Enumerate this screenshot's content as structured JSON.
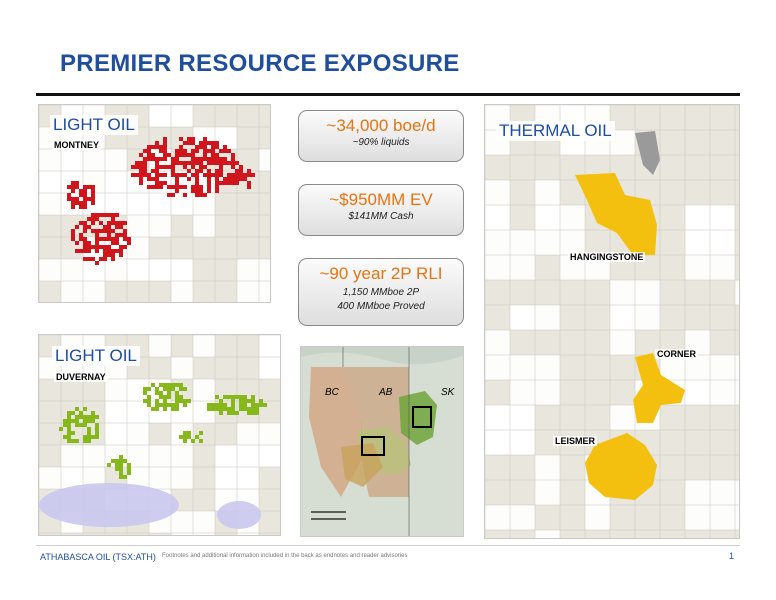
{
  "slide": {
    "title": "PREMIER RESOURCE EXPOSURE"
  },
  "maps": {
    "montney": {
      "title": "LIGHT OIL",
      "area": "MONTNEY"
    },
    "duvernay": {
      "title": "LIGHT OIL",
      "area": "DUVERNAY"
    },
    "thermal": {
      "title": "THERMAL OIL",
      "places": [
        "HANGINGSTONE",
        "CORNER",
        "LEISMER"
      ]
    },
    "regional": {
      "provinces": [
        "BC",
        "AB",
        "SK"
      ]
    }
  },
  "stats": [
    {
      "main": "~34,000 boe/d",
      "sub": [
        "~90% liquids"
      ]
    },
    {
      "main": "~$950MM EV",
      "sub": [
        "$141MM Cash"
      ]
    },
    {
      "main": "~90 year 2P RLI",
      "sub": [
        "1,150 MMboe 2P",
        "400 MMboe Proved"
      ]
    }
  ],
  "colors": {
    "title": "#1f4e9c",
    "accent_orange": "#e47512",
    "montney_red": "#d0161c",
    "duvernay_green": "#86b81b",
    "thermal_yellow": "#f4c00f"
  },
  "footer": {
    "company": "ATHABASCA OIL (TSX:ATH)",
    "note": "Footnotes and additional information included in the back as endnotes and reader advisories",
    "page": "1"
  }
}
